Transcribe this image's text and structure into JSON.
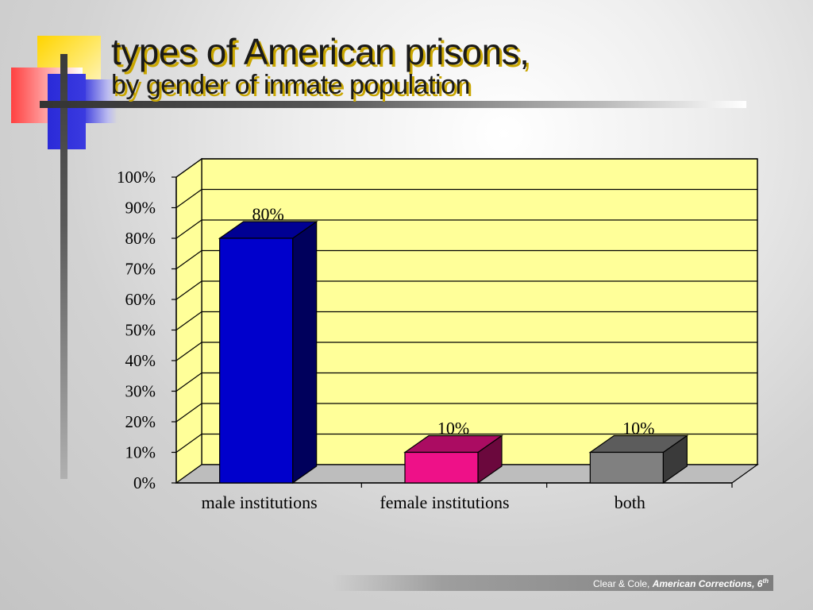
{
  "slide": {
    "title": "types of American prisons,",
    "subtitle": "by gender of inmate population",
    "footer_source": "Clear & Cole, ",
    "footer_book": "American Corrections, 6",
    "footer_sup": "th"
  },
  "colors": {
    "plot_background": "#ffff99",
    "male": "#0000cc",
    "female": "#ee1188",
    "both": "#808080",
    "title_shadow": "#c9a600"
  },
  "chart_data": {
    "type": "bar",
    "three_d": true,
    "categories": [
      "male institutions",
      "female institutions",
      "both"
    ],
    "values": [
      80,
      10,
      10
    ],
    "data_labels": [
      "80%",
      "10%",
      "10%"
    ],
    "ylim": [
      0,
      100
    ],
    "y_ticks": [
      0,
      10,
      20,
      30,
      40,
      50,
      60,
      70,
      80,
      90,
      100
    ],
    "y_tick_labels": [
      "0%",
      "10%",
      "20%",
      "30%",
      "40%",
      "50%",
      "60%",
      "70%",
      "80%",
      "90%",
      "100%"
    ],
    "grid": true,
    "legend": "none",
    "title": "",
    "xlabel": "",
    "ylabel": ""
  }
}
